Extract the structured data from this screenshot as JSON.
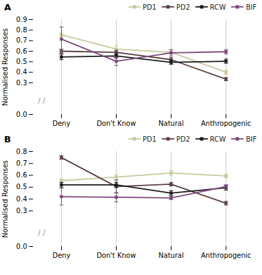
{
  "chart_data": [
    {
      "type": "line",
      "title": "A",
      "categories": [
        "Deny",
        "Don't Know",
        "Natural",
        "Anthropogenic"
      ],
      "series": [
        {
          "name": "PD1",
          "color": "#c8c8a0",
          "marker": "square",
          "values": [
            0.755,
            0.62,
            0.59,
            0.4
          ],
          "yerr": [
            0.025,
            0.03,
            0.02,
            0.02
          ]
        },
        {
          "name": "PD2",
          "color": "#5a4040",
          "marker": "square",
          "values": [
            0.6,
            0.59,
            0.52,
            0.335
          ],
          "yerr": [
            0.02,
            0.02,
            0.02,
            0.015
          ]
        },
        {
          "name": "RCW",
          "color": "#1a1a1a",
          "marker": "square",
          "values": [
            0.545,
            0.555,
            0.495,
            0.505
          ],
          "yerr": [
            0.025,
            0.02,
            0.02,
            0.02
          ]
        },
        {
          "name": "BIF",
          "color": "#7b4a7b",
          "marker": "square",
          "values": [
            0.715,
            0.505,
            0.585,
            0.595
          ],
          "yerr": [
            0.115,
            0.04,
            0.03,
            0.02
          ]
        }
      ],
      "ylabel": "Normalised Responses",
      "ylim": [
        0.0,
        0.9
      ],
      "yticks": [
        {
          "value": 0.0,
          "label": "0.0"
        },
        0.3,
        0.4,
        0.5,
        0.6,
        0.7,
        0.8,
        0.9
      ],
      "grid": "x",
      "legend": "upper right",
      "annotations": [
        "/",
        "/"
      ]
    },
    {
      "type": "line",
      "title": "B",
      "categories": [
        "Deny",
        "Don't Know",
        "Natural",
        "Anthropogenic"
      ],
      "series": [
        {
          "name": "PD1",
          "color": "#c8c8a0",
          "marker": "square",
          "values": [
            0.555,
            0.585,
            0.62,
            0.595
          ],
          "yerr": [
            0.015,
            0.02,
            0.02,
            0.015
          ]
        },
        {
          "name": "PD2",
          "color": "#5a4040",
          "marker": "square",
          "values": [
            0.75,
            0.505,
            0.525,
            0.365
          ],
          "yerr": [
            0.015,
            0.055,
            0.015,
            0.015
          ]
        },
        {
          "name": "RCW",
          "color": "#1a1a1a",
          "marker": "square",
          "values": [
            0.52,
            0.52,
            0.45,
            0.495
          ],
          "yerr": [
            0.02,
            0.02,
            0.02,
            0.02
          ]
        },
        {
          "name": "BIF",
          "color": "#7b4a7b",
          "marker": "square",
          "values": [
            0.42,
            0.415,
            0.41,
            0.505
          ],
          "yerr": [
            0.07,
            0.04,
            0.015,
            0.015
          ]
        }
      ],
      "ylabel": "Normalised Responses",
      "ylim": [
        0.0,
        0.8
      ],
      "yticks": [
        {
          "value": 0.0,
          "label": "0.0"
        },
        0.3,
        0.4,
        0.5,
        0.6,
        0.7,
        0.8
      ],
      "grid": "x",
      "legend": "upper right",
      "annotations": [
        "/",
        "/"
      ]
    }
  ]
}
